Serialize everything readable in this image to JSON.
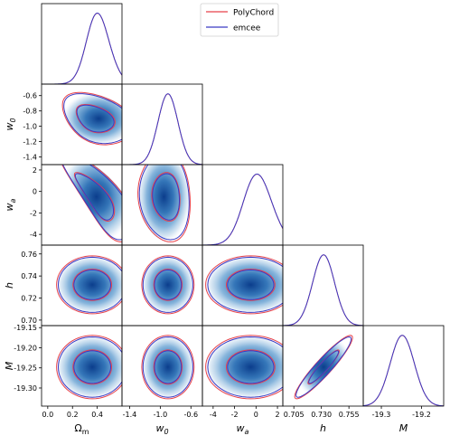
{
  "chart_data": {
    "type": "corner",
    "legend": [
      {
        "label": "PolyChord",
        "color": "#e8424a"
      },
      {
        "label": "emcee",
        "color": "#3b3bc4"
      }
    ],
    "legend_placement": "top-right",
    "parameters": [
      {
        "key": "Om",
        "label": "Ω",
        "label_sub": "m",
        "range": [
          -0.05,
          0.6
        ],
        "ticks": [
          0.0,
          0.2,
          0.4
        ],
        "tick_labels": [
          "0.0",
          "0.2",
          "0.4"
        ],
        "mean": 0.36,
        "sd": 0.11
      },
      {
        "key": "w0",
        "label": "w",
        "label_sub": "0",
        "range": [
          -1.5,
          -0.45
        ],
        "ticks": [
          -1.4,
          -1.2,
          -1.0,
          -0.8,
          -0.6
        ],
        "tick_labels": [
          "-1.4",
          "-1.2",
          "-1.0",
          "-0.8",
          "-0.6"
        ],
        "xticks": [
          -1.4,
          -1.0,
          -0.6
        ],
        "xtick_labels": [
          "-1.4",
          "-1.0",
          "-0.6"
        ],
        "mean": -0.9,
        "sd": 0.13
      },
      {
        "key": "wa",
        "label": "w",
        "label_sub": "a",
        "range": [
          -5.0,
          2.5
        ],
        "ticks": [
          -4,
          -2,
          0,
          2
        ],
        "tick_labels": [
          "-4",
          "-2",
          "0",
          "2"
        ],
        "mean": -0.5,
        "sd": 1.6
      },
      {
        "key": "h",
        "label": "h",
        "label_sub": "",
        "range": [
          0.695,
          0.768
        ],
        "ticks": [
          0.7,
          0.72,
          0.74,
          0.76
        ],
        "tick_labels": [
          "0.70",
          "0.72",
          "0.74",
          "0.76"
        ],
        "xticks": [
          0.705,
          0.73,
          0.755
        ],
        "xtick_labels": [
          "0.705",
          "0.730",
          "0.755"
        ],
        "mean": 0.732,
        "sd": 0.01
      },
      {
        "key": "M",
        "label": "M",
        "label_sub": "",
        "range": [
          -19.345,
          -19.145
        ],
        "ticks": [
          -19.3,
          -19.25,
          -19.2,
          -19.15
        ],
        "tick_labels": [
          "-19.30",
          "-19.25",
          "-19.20",
          "-19.15"
        ],
        "xticks": [
          -19.3,
          -19.2
        ],
        "xtick_labels": [
          "-19.3",
          "-19.2"
        ],
        "mean": -19.248,
        "sd": 0.03
      }
    ],
    "correlations": {
      "w0_Om": -0.35,
      "wa_Om": -0.8,
      "h_Om": 0.0,
      "M_Om": 0.0,
      "wa_w0": -0.1,
      "h_w0": 0.0,
      "M_w0": 0.0,
      "h_wa": 0.0,
      "M_wa": 0.0,
      "M_h": 0.93
    }
  }
}
